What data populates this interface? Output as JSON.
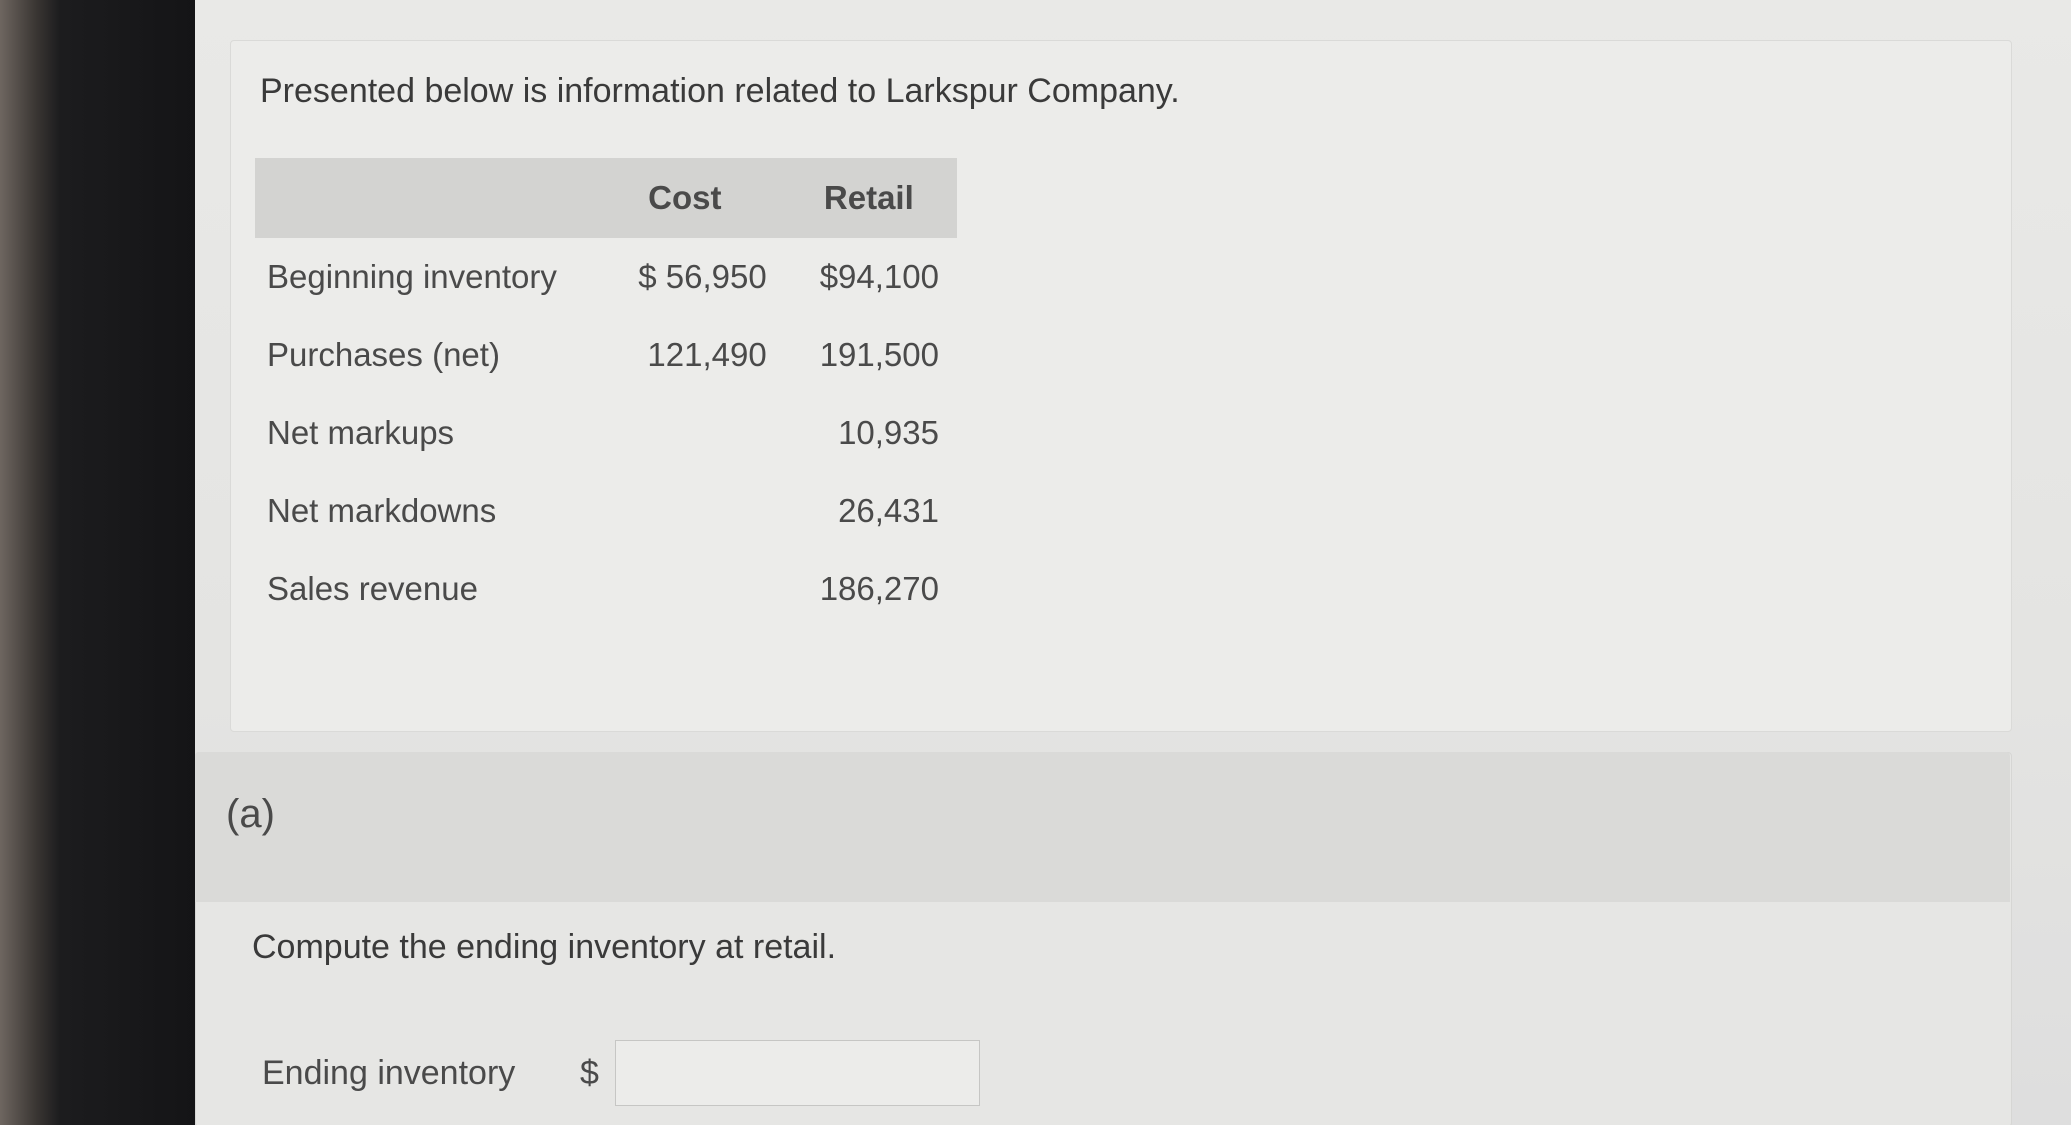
{
  "intro_text": "Presented below is information related to Larkspur Company.",
  "table": {
    "headers": [
      "",
      "Cost",
      "Retail"
    ],
    "rows": [
      {
        "label": "Beginning inventory",
        "cost": "$ 56,950",
        "retail": "$94,100"
      },
      {
        "label": "Purchases (net)",
        "cost": "121,490",
        "retail": "191,500"
      },
      {
        "label": "Net markups",
        "cost": "",
        "retail": "10,935"
      },
      {
        "label": "Net markdowns",
        "cost": "",
        "retail": "26,431"
      },
      {
        "label": "Sales revenue",
        "cost": "",
        "retail": "186,270"
      }
    ]
  },
  "part": {
    "label": "(a)",
    "question": "Compute the ending inventory at retail.",
    "answer_label": "Ending inventory",
    "currency": "$",
    "answer_value": ""
  }
}
